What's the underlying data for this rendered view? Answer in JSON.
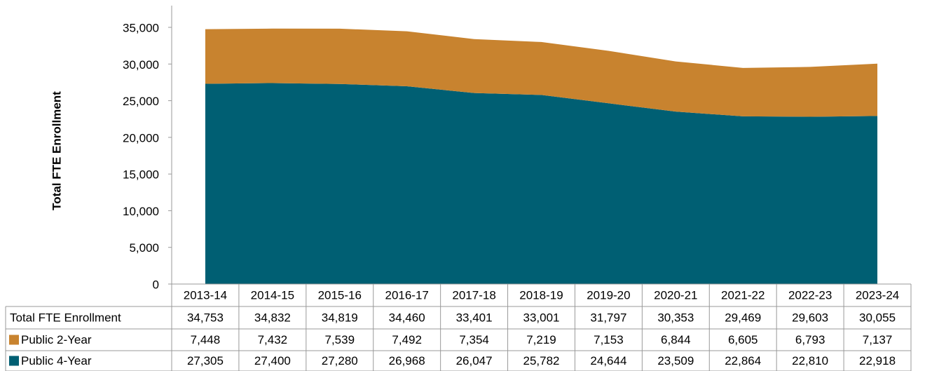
{
  "chart_data": {
    "type": "stacked_area",
    "y_axis_label": "Total FTE Enrollment",
    "categories": [
      "2013-14",
      "2014-15",
      "2015-16",
      "2016-17",
      "2017-18",
      "2018-19",
      "2019-20",
      "2020-21",
      "2021-22",
      "2022-23",
      "2023-24"
    ],
    "series": [
      {
        "name": "Public 2-Year",
        "color": "#c8832f",
        "values": [
          7448,
          7432,
          7539,
          7492,
          7354,
          7219,
          7153,
          6844,
          6605,
          6793,
          7137
        ],
        "value_labels": [
          "7,448",
          "7,432",
          "7,539",
          "7,492",
          "7,354",
          "7,219",
          "7,153",
          "6,844",
          "6,605",
          "6,793",
          "7,137"
        ]
      },
      {
        "name": "Public 4-Year",
        "color": "#005f73",
        "values": [
          27305,
          27400,
          27280,
          26968,
          26047,
          25782,
          24644,
          23509,
          22864,
          22810,
          22918
        ],
        "value_labels": [
          "27,305",
          "27,400",
          "27,280",
          "26,968",
          "26,047",
          "25,782",
          "24,644",
          "23,509",
          "22,864",
          "22,810",
          "22,918"
        ]
      }
    ],
    "totals": {
      "name": "Total FTE Enrollment",
      "values": [
        34753,
        34832,
        34819,
        34460,
        33401,
        33001,
        31797,
        30353,
        29469,
        29603,
        30055
      ],
      "value_labels": [
        "34,753",
        "34,832",
        "34,819",
        "34,460",
        "33,401",
        "33,001",
        "31,797",
        "30,353",
        "29,469",
        "29,603",
        "30,055"
      ]
    },
    "ylim": [
      0,
      35000
    ],
    "yticks": [
      0,
      {
        "value": 5000,
        "label": "5,000"
      },
      {
        "value": 10000,
        "label": "10,000"
      },
      {
        "value": 15000,
        "label": "15,000"
      },
      {
        "value": 20000,
        "label": "20,000"
      },
      {
        "value": 25000,
        "label": "25,000"
      },
      {
        "value": 30000,
        "label": "30,000"
      },
      {
        "value": 35000,
        "label": "35,000"
      }
    ],
    "grid": false
  }
}
